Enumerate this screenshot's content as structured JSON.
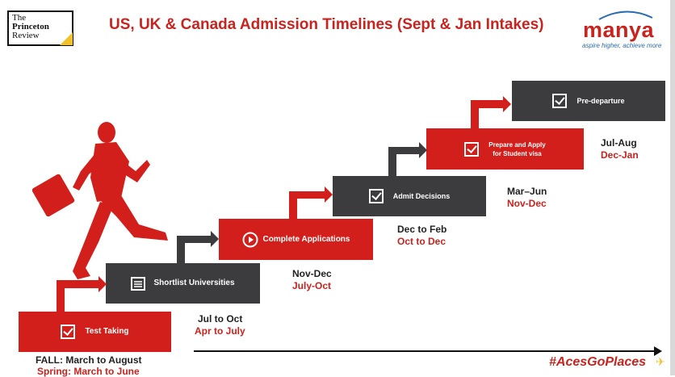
{
  "header": {
    "brand_left_lines": [
      "The",
      "Princeton",
      "Review"
    ],
    "title": "US, UK & Canada Admission Timelines (Sept & Jan Intakes)",
    "brand_right": "manya",
    "brand_right_tagline": "aspire higher, achieve more"
  },
  "steps": [
    {
      "label": "Test Taking",
      "icon": "checkbox-icon",
      "date1": "FALL: March to August",
      "date2": "Spring: March to June"
    },
    {
      "label": "Shortlist Universities",
      "icon": "list-icon",
      "date1": "Jul to Oct",
      "date2": "Apr to July"
    },
    {
      "label": "Complete Applications",
      "icon": "play-icon",
      "date1": "Nov-Dec",
      "date2": "July-Oct"
    },
    {
      "label": "Admit Decisions",
      "icon": "checkbox-icon",
      "date1": "Dec to Feb",
      "date2": "Oct to Dec"
    },
    {
      "label_lines": [
        "Prepare and Apply",
        "for Student visa"
      ],
      "icon": "checkbox-icon",
      "date1": "Mar–Jun",
      "date2": "Nov-Dec"
    },
    {
      "label": "Pre-departure",
      "icon": "checkbox-icon",
      "date1": "Jul-Aug",
      "date2": "Dec-Jan"
    }
  ],
  "footer": {
    "hashtag": "#AcesGoPlaces"
  },
  "colors": {
    "accent_red": "#d21f1b",
    "dark_grey": "#3c3c3e",
    "text_red": "#c8241f"
  }
}
